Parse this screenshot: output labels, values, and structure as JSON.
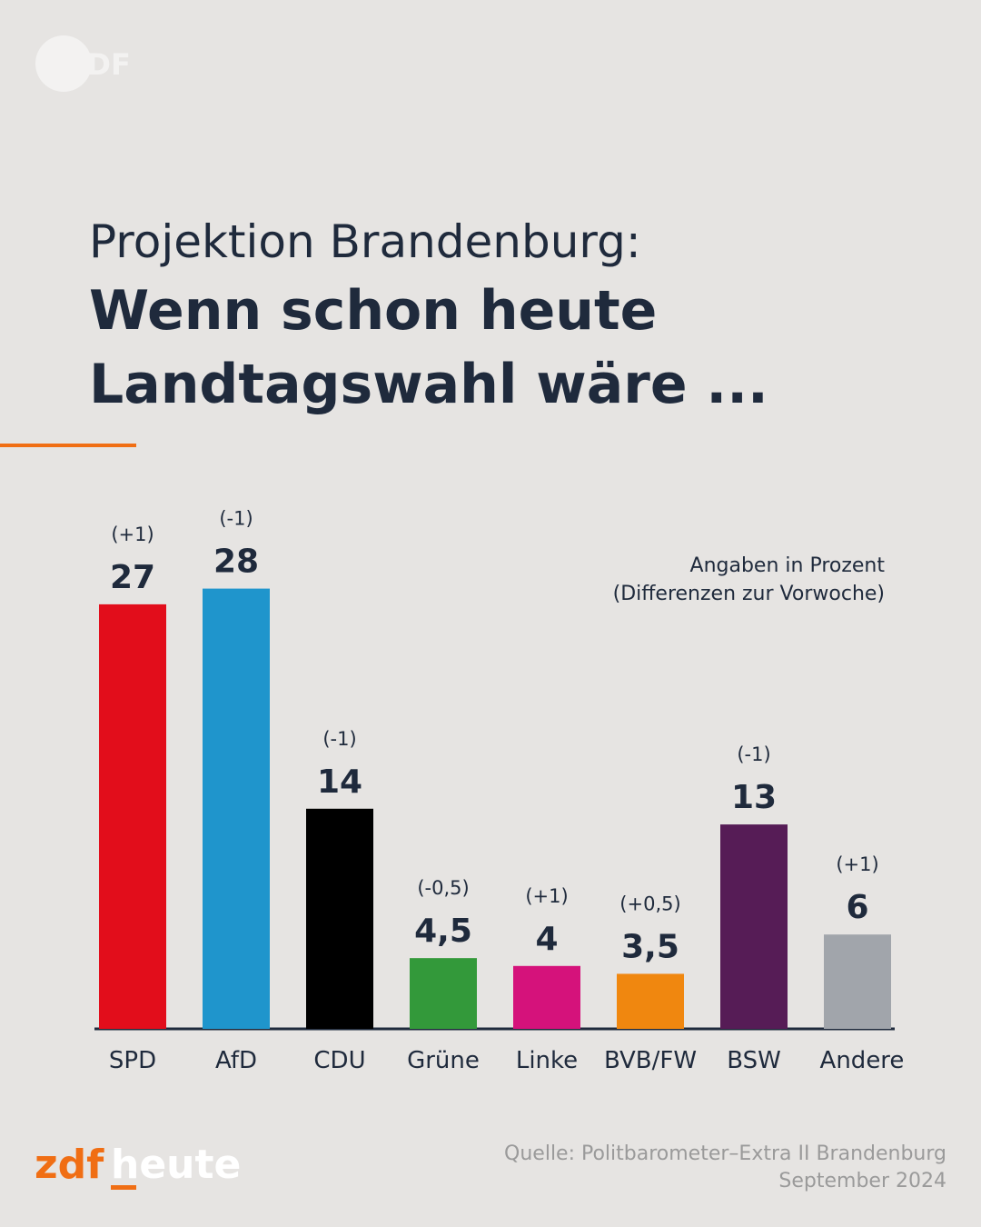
{
  "header": {
    "logo": "ZDF"
  },
  "chart_data": {
    "type": "bar",
    "title": "Projektion Brandenburg:",
    "subtitle": [
      "Wenn schon heute",
      "Landtagswahl wäre ..."
    ],
    "note": [
      "Angaben in Prozent",
      "(Differenzen zur Vorwoche)"
    ],
    "categories": [
      "SPD",
      "AfD",
      "CDU",
      "Grüne",
      "Linke",
      "BVB/FW",
      "BSW",
      "Andere"
    ],
    "values": [
      27,
      28,
      14,
      4.5,
      4,
      3.5,
      13,
      6
    ],
    "value_labels": [
      "27",
      "28",
      "14",
      "4,5",
      "4",
      "3,5",
      "13",
      "6"
    ],
    "changes": [
      "(+1)",
      "(-1)",
      "(-1)",
      "(-0,5)",
      "(+1)",
      "(+0,5)",
      "(-1)",
      "(+1)"
    ],
    "colors": [
      "#e20d1b",
      "#1f95cc",
      "#000000",
      "#33993a",
      "#d5127b",
      "#f0870f",
      "#561c56",
      "#a1a5ab"
    ],
    "source": [
      "Quelle: Politbarometer–Extra II Brandenburg",
      "September 2024"
    ]
  },
  "footer": {
    "brand_prefix": "zdf",
    "brand_suffix": "heute"
  }
}
